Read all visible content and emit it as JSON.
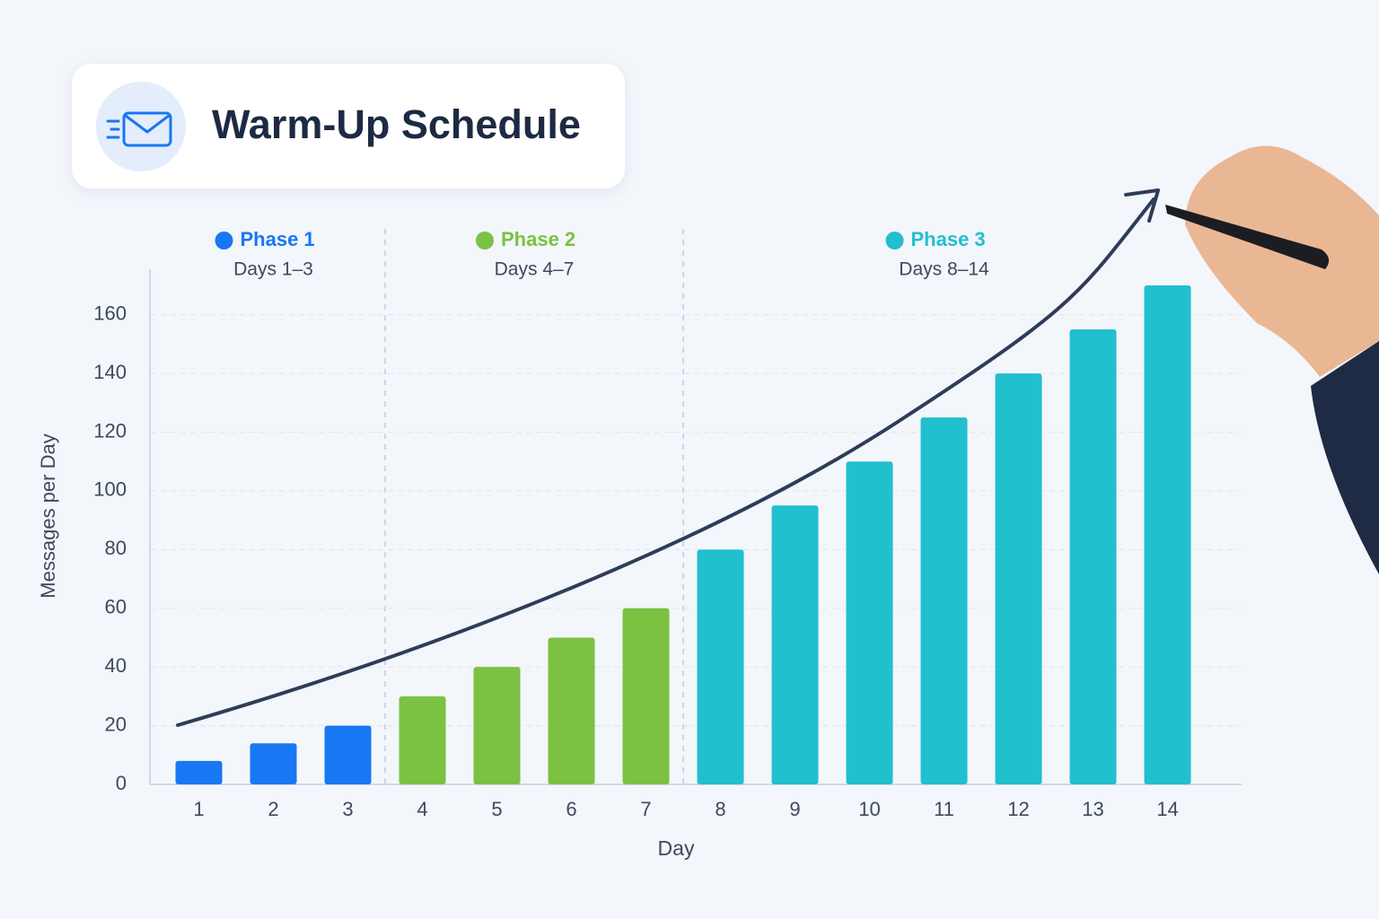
{
  "chart_data": {
    "type": "bar",
    "title": "Warm-Up Schedule",
    "x_label": "Day",
    "y_label": "Messages per Day",
    "categories": [
      "1",
      "2",
      "3",
      "4",
      "5",
      "6",
      "7",
      "8",
      "9",
      "10",
      "11",
      "12",
      "13",
      "14"
    ],
    "values": [
      8,
      14,
      20,
      30,
      40,
      50,
      60,
      80,
      95,
      110,
      125,
      140,
      155,
      170
    ],
    "colors": [
      "#1877f2",
      "#1877f2",
      "#1877f2",
      "#7bc142",
      "#7bc142",
      "#7bc142",
      "#7bc142",
      "#22bfcf",
      "#22bfcf",
      "#22bfcf",
      "#22bfcf",
      "#22bfcf",
      "#22bfcf",
      "#22bfcf"
    ],
    "phases": [
      {
        "name": "Phase 1",
        "label": "Days 1–3",
        "color": "#1877f2"
      },
      {
        "name": "Phase 2",
        "label": "Days 4–7",
        "color": "#7bc142"
      },
      {
        "name": "Phase 3",
        "label": "Days 8–14",
        "color": "#22bfcf"
      }
    ],
    "ylim": [
      0,
      175
    ],
    "yticks": [
      0,
      20,
      40,
      60,
      80,
      100,
      120,
      140,
      160
    ],
    "grid": true
  }
}
